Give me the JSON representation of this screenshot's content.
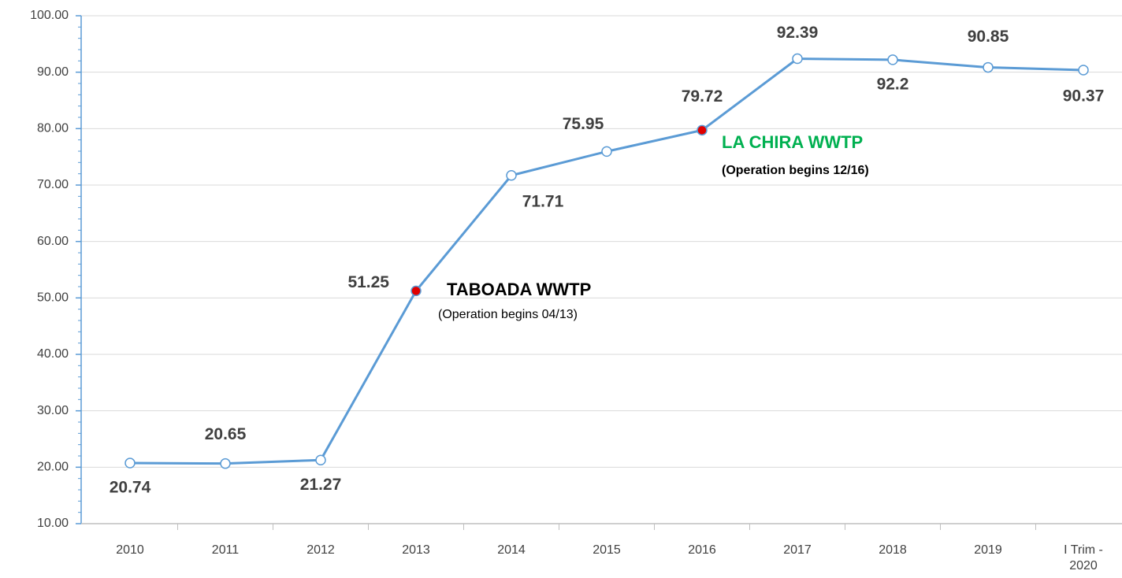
{
  "chart_data": {
    "type": "line",
    "categories": [
      "2010",
      "2011",
      "2012",
      "2013",
      "2014",
      "2015",
      "2016",
      "2017",
      "2018",
      "2019",
      "I Trim - 2020"
    ],
    "series": [
      {
        "color": "#5b9bd5",
        "values": [
          20.74,
          20.65,
          21.27,
          51.25,
          71.71,
          75.95,
          79.72,
          92.39,
          92.2,
          90.85,
          90.37
        ]
      }
    ],
    "point_colors": [
      "#ffffff",
      "#ffffff",
      "#ffffff",
      "#e00000",
      "#ffffff",
      "#ffffff",
      "#e00000",
      "#ffffff",
      "#ffffff",
      "#ffffff",
      "#ffffff"
    ],
    "ylim": [
      10,
      100
    ],
    "yticks": [
      {
        "value": 10,
        "label": "10.00"
      },
      {
        "value": 20,
        "label": "20.00"
      },
      {
        "value": 30,
        "label": "30.00"
      },
      {
        "value": 40,
        "label": "40.00"
      },
      {
        "value": 50,
        "label": "50.00"
      },
      {
        "value": 60,
        "label": "60.00"
      },
      {
        "value": 70,
        "label": "70.00"
      },
      {
        "value": 80,
        "label": "80.00"
      },
      {
        "value": 90,
        "label": "90.00"
      },
      {
        "value": 100,
        "label": "100.00"
      }
    ],
    "grid": true,
    "annotations": [
      {
        "title": "TABOADA WWTP",
        "text": "(Operation begins 04/13)",
        "color": "#000000"
      },
      {
        "title": "LA CHIRA WWTP",
        "text": "(Operation begins 12/16)",
        "color": "#00b050"
      }
    ]
  }
}
